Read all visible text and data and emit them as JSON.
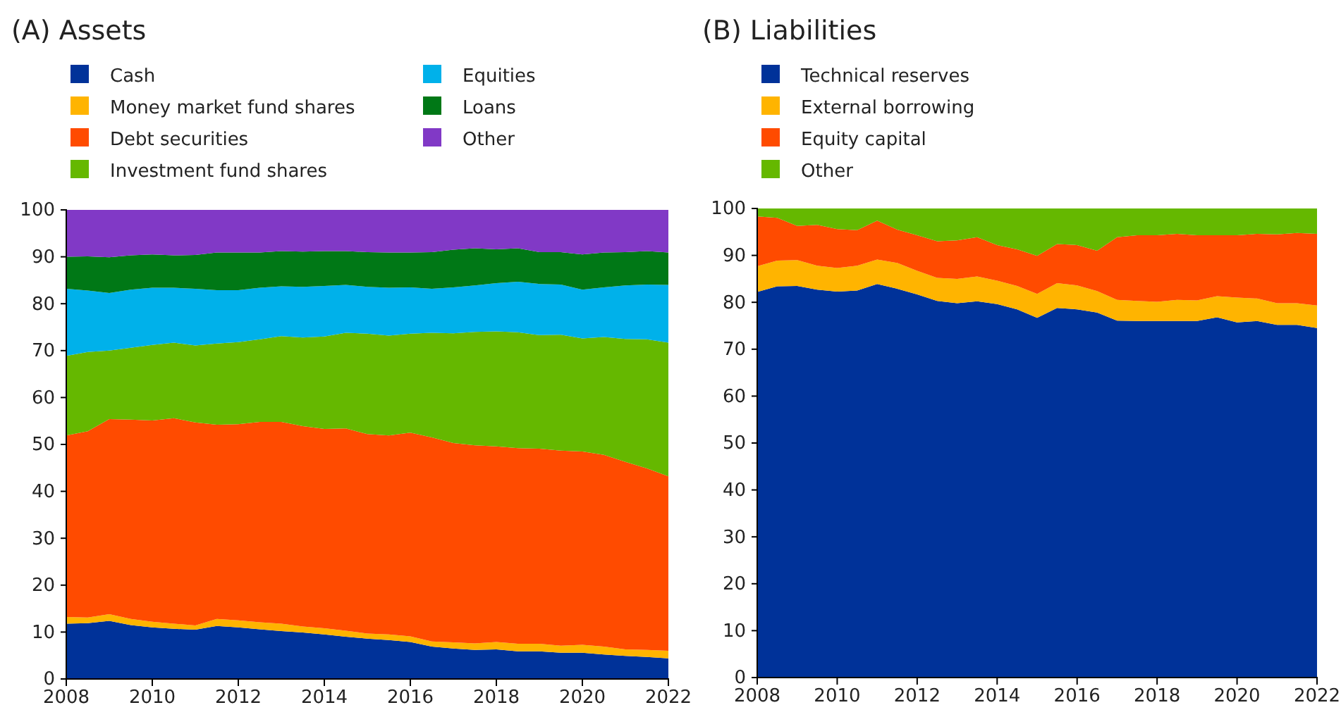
{
  "chart_data": [
    {
      "type": "area",
      "title": "(A) Assets",
      "stacked": true,
      "legend": "top",
      "xlim": [
        2008,
        2022
      ],
      "xticks": [
        2008,
        2010,
        2012,
        2014,
        2016,
        2018,
        2020,
        2022
      ],
      "ylim": [
        0,
        100
      ],
      "yticks": [
        0,
        10,
        20,
        30,
        40,
        50,
        60,
        70,
        80,
        90,
        100
      ],
      "x": [
        2008,
        2008.5,
        2009,
        2009.5,
        2010,
        2010.5,
        2011,
        2011.5,
        2012,
        2012.5,
        2013,
        2013.5,
        2014,
        2014.5,
        2015,
        2015.5,
        2016,
        2016.5,
        2017,
        2017.5,
        2018,
        2018.5,
        2019,
        2019.5,
        2020,
        2020.5,
        2021,
        2021.5,
        2022
      ],
      "series": [
        {
          "name": "Cash",
          "color": "#003299",
          "values": [
            11.8,
            11.9,
            12.4,
            11.5,
            11.0,
            10.7,
            10.5,
            11.3,
            11.0,
            10.6,
            10.2,
            9.9,
            9.5,
            9.0,
            8.6,
            8.3,
            7.9,
            6.9,
            6.5,
            6.2,
            6.3,
            5.9,
            5.9,
            5.6,
            5.6,
            5.2,
            4.9,
            4.7,
            4.4
          ]
        },
        {
          "name": "Money market fund shares",
          "color": "#ffb400",
          "values": [
            1.4,
            1.2,
            1.4,
            1.3,
            1.2,
            1.1,
            0.9,
            1.5,
            1.5,
            1.5,
            1.6,
            1.3,
            1.3,
            1.3,
            1.1,
            1.2,
            1.2,
            1.1,
            1.3,
            1.4,
            1.6,
            1.6,
            1.6,
            1.5,
            1.7,
            1.7,
            1.4,
            1.5,
            1.6
          ]
        },
        {
          "name": "Debt securities",
          "color": "#ff4b00",
          "values": [
            38.7,
            39.7,
            41.6,
            42.5,
            42.9,
            43.8,
            43.3,
            41.4,
            41.8,
            42.7,
            43.0,
            42.7,
            42.5,
            43.1,
            42.5,
            42.4,
            43.4,
            43.5,
            42.5,
            42.2,
            41.7,
            41.7,
            41.6,
            41.6,
            41.2,
            40.9,
            40.0,
            38.7,
            37.2
          ]
        },
        {
          "name": "Investment fund shares",
          "color": "#65b800",
          "values": [
            17.0,
            16.9,
            14.6,
            15.3,
            16.1,
            16.1,
            16.4,
            17.3,
            17.5,
            17.6,
            18.3,
            18.9,
            19.7,
            20.4,
            21.4,
            21.3,
            21.1,
            22.3,
            23.4,
            24.2,
            24.5,
            24.7,
            24.2,
            24.7,
            24.1,
            25.1,
            26.2,
            27.5,
            28.5
          ]
        },
        {
          "name": "Equities",
          "color": "#00b1ea",
          "values": [
            14.3,
            13.1,
            12.3,
            12.4,
            12.2,
            11.7,
            12.1,
            11.4,
            11.1,
            11.0,
            10.6,
            10.8,
            10.8,
            10.2,
            10.0,
            10.2,
            9.9,
            9.4,
            9.8,
            9.9,
            10.3,
            10.8,
            10.9,
            10.7,
            10.4,
            10.6,
            11.4,
            11.7,
            12.3
          ]
        },
        {
          "name": "Loans",
          "color": "#007816",
          "values": [
            6.8,
            7.3,
            7.6,
            7.3,
            7.1,
            6.9,
            7.2,
            8.0,
            8.0,
            7.5,
            7.5,
            7.5,
            7.4,
            7.2,
            7.4,
            7.5,
            7.4,
            7.8,
            8.0,
            7.9,
            7.2,
            7.1,
            6.8,
            6.9,
            7.5,
            7.4,
            7.1,
            7.1,
            6.9
          ]
        },
        {
          "name": "Other",
          "color": "#8139c6",
          "values": [
            10.0,
            9.9,
            10.1,
            9.7,
            9.5,
            9.7,
            9.6,
            9.1,
            9.1,
            9.1,
            8.8,
            8.9,
            8.8,
            8.8,
            9.0,
            9.1,
            9.1,
            9.0,
            8.5,
            8.2,
            8.4,
            8.2,
            9.0,
            9.0,
            9.5,
            9.1,
            9.0,
            8.8,
            9.1
          ]
        }
      ]
    },
    {
      "type": "area",
      "title": "(B) Liabilities",
      "stacked": true,
      "legend": "top",
      "xlim": [
        2008,
        2022
      ],
      "xticks": [
        2008,
        2010,
        2012,
        2014,
        2016,
        2018,
        2020,
        2022
      ],
      "ylim": [
        0,
        100
      ],
      "yticks": [
        0,
        10,
        20,
        30,
        40,
        50,
        60,
        70,
        80,
        90,
        100
      ],
      "x": [
        2008,
        2008.5,
        2009,
        2009.5,
        2010,
        2010.5,
        2011,
        2011.5,
        2012,
        2012.5,
        2013,
        2013.5,
        2014,
        2014.5,
        2015,
        2015.5,
        2016,
        2016.5,
        2017,
        2017.5,
        2018,
        2018.5,
        2019,
        2019.5,
        2020,
        2020.5,
        2021,
        2021.5,
        2022
      ],
      "series": [
        {
          "name": "Technical reserves",
          "color": "#003299",
          "values": [
            82.2,
            83.4,
            83.5,
            82.7,
            82.3,
            82.5,
            83.9,
            82.9,
            81.7,
            80.3,
            79.8,
            80.2,
            79.6,
            78.5,
            76.7,
            78.8,
            78.5,
            77.8,
            76.1,
            76.0,
            76.0,
            76.0,
            76.0,
            76.8,
            75.7,
            76.0,
            75.2,
            75.2,
            74.5
          ]
        },
        {
          "name": "External borrowing",
          "color": "#ffb400",
          "values": [
            5.5,
            5.5,
            5.5,
            5.1,
            5.0,
            5.3,
            5.2,
            5.5,
            5.0,
            4.9,
            5.2,
            5.3,
            5.0,
            5.0,
            5.1,
            5.3,
            5.1,
            4.6,
            4.4,
            4.3,
            4.1,
            4.5,
            4.4,
            4.5,
            5.3,
            4.8,
            4.6,
            4.6,
            4.8
          ]
        },
        {
          "name": "Equity capital",
          "color": "#ff4b00",
          "values": [
            10.6,
            9.1,
            7.3,
            8.7,
            8.3,
            7.6,
            8.3,
            7.1,
            7.6,
            7.8,
            8.2,
            8.4,
            7.6,
            7.8,
            8.1,
            8.3,
            8.6,
            8.6,
            13.4,
            14.0,
            14.2,
            14.1,
            13.9,
            13.0,
            13.3,
            13.8,
            14.7,
            15.0,
            15.3
          ]
        },
        {
          "name": "Other",
          "color": "#65b800",
          "values": [
            1.7,
            2.0,
            3.7,
            3.5,
            4.4,
            4.6,
            2.6,
            4.5,
            5.7,
            7.0,
            6.8,
            6.1,
            7.8,
            8.7,
            10.1,
            7.6,
            7.8,
            9.0,
            6.1,
            5.7,
            5.7,
            5.4,
            5.7,
            5.7,
            5.7,
            5.4,
            5.5,
            5.2,
            5.4
          ]
        }
      ]
    }
  ]
}
